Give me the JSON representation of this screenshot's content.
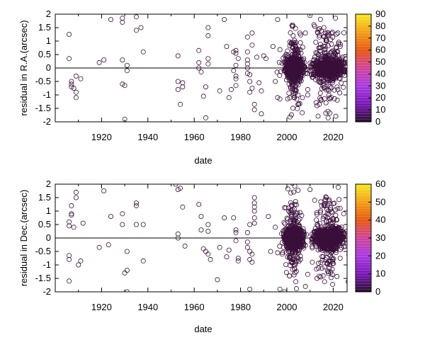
{
  "chart_data": [
    {
      "type": "scatter",
      "xlabel": "date",
      "ylabel": "residual in R.A.(arcsec)",
      "xlim": [
        1900,
        2026
      ],
      "ylim": [
        -2,
        2
      ],
      "x_ticks": [
        "1920",
        "1940",
        "1960",
        "1980",
        "2000",
        "2020"
      ],
      "y_ticks": [
        "-2",
        "-1.5",
        "-1",
        "-0.5",
        "0",
        "0.5",
        "1",
        "1.5",
        "2"
      ],
      "zero_line": true,
      "marker": "open-circle",
      "colorbar": {
        "range": [
          0,
          90
        ],
        "ticks": [
          "0",
          "10",
          "20",
          "30",
          "40",
          "50",
          "60",
          "70",
          "80",
          "90"
        ],
        "colors": [
          "#2a0f2a",
          "#7b17b8",
          "#a83be0",
          "#d0439a",
          "#e8580f",
          "#f2a015",
          "#f7e81f"
        ]
      },
      "clusters": [
        {
          "center": 2003,
          "width": 3,
          "density": "dense"
        },
        {
          "center": 2018,
          "width": 5,
          "density": "dense"
        }
      ],
      "points": [
        [
          1906,
          1.25
        ],
        [
          1906,
          0.35
        ],
        [
          1907,
          -0.5
        ],
        [
          1907,
          -0.6
        ],
        [
          1907,
          -0.7
        ],
        [
          1908,
          -0.75
        ],
        [
          1909,
          -0.3
        ],
        [
          1909,
          -0.9
        ],
        [
          1909,
          -1.1
        ],
        [
          1911,
          -0.4
        ],
        [
          1919,
          0.2
        ],
        [
          1921,
          0.3
        ],
        [
          1924,
          1.8
        ],
        [
          1929,
          1.85
        ],
        [
          1929,
          1.7
        ],
        [
          1929,
          0.3
        ],
        [
          1929,
          -0.6
        ],
        [
          1930,
          -0.65
        ],
        [
          1931,
          0.1
        ],
        [
          1931,
          -0.1
        ],
        [
          1930,
          -1.9
        ],
        [
          1935,
          1.9
        ],
        [
          1935,
          1.4
        ],
        [
          1938,
          0.6
        ],
        [
          1937,
          1.5
        ],
        [
          1953,
          0.45
        ],
        [
          1953,
          -0.5
        ],
        [
          1953,
          -0.8
        ],
        [
          1954,
          -1.35
        ],
        [
          1955,
          -0.55
        ],
        [
          1955,
          -0.7
        ],
        [
          1962,
          0.65
        ],
        [
          1962,
          0.2
        ],
        [
          1962,
          0.0
        ],
        [
          1963,
          -0.15
        ],
        [
          1964,
          -1.05
        ],
        [
          1965,
          -0.7
        ],
        [
          1965,
          -1.85
        ],
        [
          1966,
          1.5
        ],
        [
          1966,
          1.2
        ],
        [
          1966,
          0.35
        ],
        [
          1966,
          0.15
        ],
        [
          1971,
          -0.85
        ],
        [
          1973,
          1.8
        ],
        [
          1974,
          0.8
        ],
        [
          1975,
          -1.1
        ],
        [
          1976,
          -0.8
        ],
        [
          1977,
          -0.1
        ],
        [
          1977,
          0.6
        ],
        [
          1978,
          0.65
        ],
        [
          1978,
          0.55
        ],
        [
          1978,
          0.1
        ],
        [
          1978,
          -0.3
        ],
        [
          1978,
          -0.4
        ],
        [
          1978,
          -0.65
        ],
        [
          1979,
          0.35
        ],
        [
          1983,
          1.15
        ],
        [
          1983,
          0.6
        ],
        [
          1983,
          0.3
        ],
        [
          1983,
          0.15
        ],
        [
          1983,
          0.0
        ],
        [
          1983,
          -0.2
        ],
        [
          1984,
          -0.25
        ],
        [
          1984,
          -0.5
        ],
        [
          1984,
          -0.9
        ],
        [
          1985,
          -0.75
        ],
        [
          1985,
          0.85
        ],
        [
          1985,
          1.3
        ],
        [
          1986,
          -1.35
        ],
        [
          1986,
          -1.55
        ],
        [
          1987,
          0.4
        ],
        [
          1988,
          -0.55
        ],
        [
          1989,
          -0.85
        ],
        [
          1989,
          -1.7
        ],
        [
          1990,
          0.45
        ],
        [
          1991,
          0.35
        ],
        [
          1994,
          0.8
        ],
        [
          1995,
          -0.5
        ],
        [
          1996,
          -1.1
        ],
        [
          1997,
          -1.15
        ],
        [
          1996,
          1.8
        ],
        [
          2008,
          1.3
        ],
        [
          2009,
          -0.8
        ],
        [
          2009,
          -1.0
        ],
        [
          2010,
          1.95
        ],
        [
          2011,
          -0.35
        ],
        [
          2012,
          1.55
        ],
        [
          2012,
          0.4
        ],
        [
          2013,
          -1.4
        ],
        [
          2014,
          -1.35
        ],
        [
          2014,
          1.15
        ],
        [
          2016,
          1.5
        ],
        [
          2018,
          1.3
        ],
        [
          2021,
          1.85
        ],
        [
          2023,
          0.8
        ],
        [
          2022,
          -0.8
        ]
      ]
    },
    {
      "type": "scatter",
      "xlabel": "date",
      "ylabel": "residual in Dec.(arcsec)",
      "xlim": [
        1900,
        2026
      ],
      "ylim": [
        -2,
        2
      ],
      "x_ticks": [
        "1920",
        "1940",
        "1960",
        "1980",
        "2000",
        "2020"
      ],
      "y_ticks": [
        "-2",
        "-1.5",
        "-1",
        "-0.5",
        "0",
        "0.5",
        "1",
        "1.5",
        "2"
      ],
      "zero_line": true,
      "marker": "open-circle",
      "colorbar": {
        "range": [
          0,
          60
        ],
        "ticks": [
          "0",
          "10",
          "20",
          "30",
          "40",
          "50",
          "60"
        ],
        "colors": [
          "#2a0f2a",
          "#7b17b8",
          "#a83be0",
          "#d0439a",
          "#e8580f",
          "#f2a015",
          "#f7e81f"
        ]
      },
      "clusters": [
        {
          "center": 2003,
          "width": 3,
          "density": "dense"
        },
        {
          "center": 2018,
          "width": 5,
          "density": "dense"
        }
      ],
      "points": [
        [
          1906,
          0.6
        ],
        [
          1906,
          0.45
        ],
        [
          1907,
          1.2
        ],
        [
          1907,
          0.85
        ],
        [
          1907,
          0.9
        ],
        [
          1908,
          0.4
        ],
        [
          1906,
          -0.65
        ],
        [
          1906,
          -0.8
        ],
        [
          1906,
          -1.6
        ],
        [
          1909,
          1.7
        ],
        [
          1909,
          1.5
        ],
        [
          1910,
          -1.0
        ],
        [
          1911,
          -0.85
        ],
        [
          1912,
          0.55
        ],
        [
          1919,
          -0.35
        ],
        [
          1921,
          1.75
        ],
        [
          1923,
          -0.25
        ],
        [
          1924,
          0.8
        ],
        [
          1929,
          0.9
        ],
        [
          1929,
          0.5
        ],
        [
          1930,
          -1.3
        ],
        [
          1931,
          -1.2
        ],
        [
          1931,
          -0.5
        ],
        [
          1931,
          -2.0
        ],
        [
          1935,
          1.3
        ],
        [
          1935,
          1.2
        ],
        [
          1935,
          0.5
        ],
        [
          1938,
          0.5
        ],
        [
          1938,
          -0.85
        ],
        [
          1952,
          2.0
        ],
        [
          1953,
          1.8
        ],
        [
          1954,
          1.85
        ],
        [
          1953,
          0.15
        ],
        [
          1953,
          0.0
        ],
        [
          1955,
          1.15
        ],
        [
          1956,
          -0.3
        ],
        [
          1962,
          1.25
        ],
        [
          1963,
          0.8
        ],
        [
          1963,
          0.3
        ],
        [
          1964,
          -0.4
        ],
        [
          1965,
          -0.5
        ],
        [
          1966,
          0.5
        ],
        [
          1966,
          0.25
        ],
        [
          1966,
          -0.6
        ],
        [
          1967,
          -0.8
        ],
        [
          1970,
          -1.55
        ],
        [
          1971,
          -0.35
        ],
        [
          1973,
          0.75
        ],
        [
          1974,
          -0.7
        ],
        [
          1975,
          -0.45
        ],
        [
          1977,
          0.75
        ],
        [
          1978,
          0.3
        ],
        [
          1978,
          0.2
        ],
        [
          1978,
          -0.1
        ],
        [
          1979,
          -0.75
        ],
        [
          1979,
          -0.85
        ],
        [
          1983,
          0.2
        ],
        [
          1983,
          -0.15
        ],
        [
          1983,
          -0.35
        ],
        [
          1984,
          -0.5
        ],
        [
          1984,
          0.5
        ],
        [
          1984,
          -0.8
        ],
        [
          1984,
          -1.9
        ],
        [
          1986,
          1.5
        ],
        [
          1986,
          1.3
        ],
        [
          1986,
          1.15
        ],
        [
          1986,
          1.0
        ],
        [
          1986,
          0.75
        ],
        [
          1986,
          0.55
        ],
        [
          1985,
          -0.6
        ],
        [
          1985,
          -0.9
        ],
        [
          1992,
          0.8
        ],
        [
          1993,
          -0.5
        ],
        [
          1995,
          0.4
        ],
        [
          1996,
          -0.55
        ],
        [
          1998,
          -0.6
        ],
        [
          1997,
          -1.9
        ],
        [
          1999,
          -2.0
        ],
        [
          2008,
          -1.8
        ],
        [
          2009,
          -1.35
        ],
        [
          2010,
          1.8
        ],
        [
          2011,
          -0.9
        ],
        [
          2012,
          1.4
        ],
        [
          2013,
          -1.5
        ],
        [
          2015,
          1.2
        ],
        [
          2017,
          1.5
        ],
        [
          2018,
          -1.25
        ],
        [
          2021,
          1.05
        ],
        [
          2023,
          -0.75
        ],
        [
          2022,
          1.1
        ]
      ]
    }
  ]
}
